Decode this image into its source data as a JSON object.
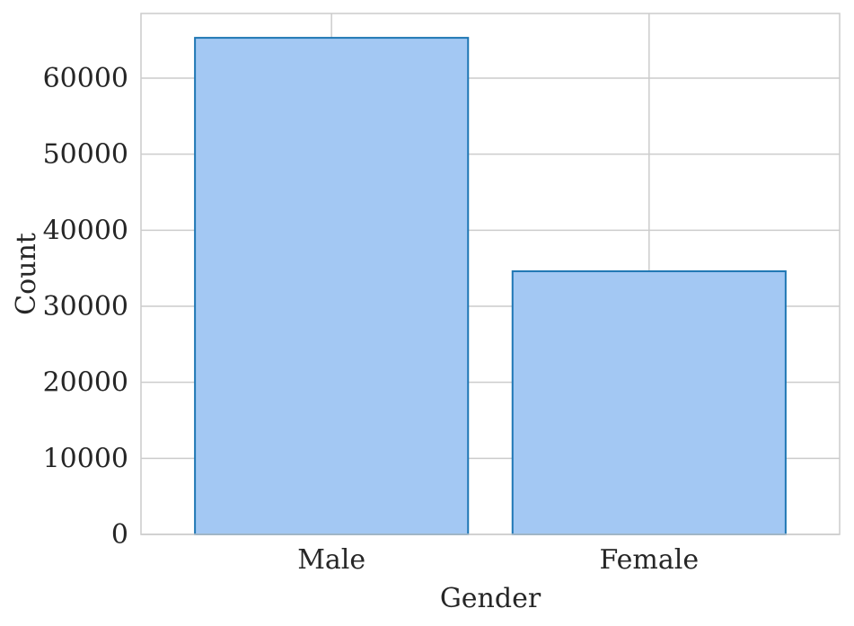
{
  "chart_data": {
    "type": "bar",
    "categories": [
      "Male",
      "Female"
    ],
    "values": [
      65300,
      34600
    ],
    "title": "",
    "xlabel": "Gender",
    "ylabel": "Count",
    "ylim": [
      0,
      68500
    ],
    "yticks": [
      0,
      10000,
      20000,
      30000,
      40000,
      50000,
      60000
    ],
    "ytick_labels": [
      "0",
      "10000",
      "20000",
      "30000",
      "40000",
      "50000",
      "60000"
    ],
    "grid": true,
    "legend": "none",
    "colors": {
      "bar_fill": "#a3c8f3",
      "bar_edge": "#1f77b4",
      "grid": "#cccccc",
      "axes_edge": "#cccccc",
      "text": "#262626"
    }
  }
}
